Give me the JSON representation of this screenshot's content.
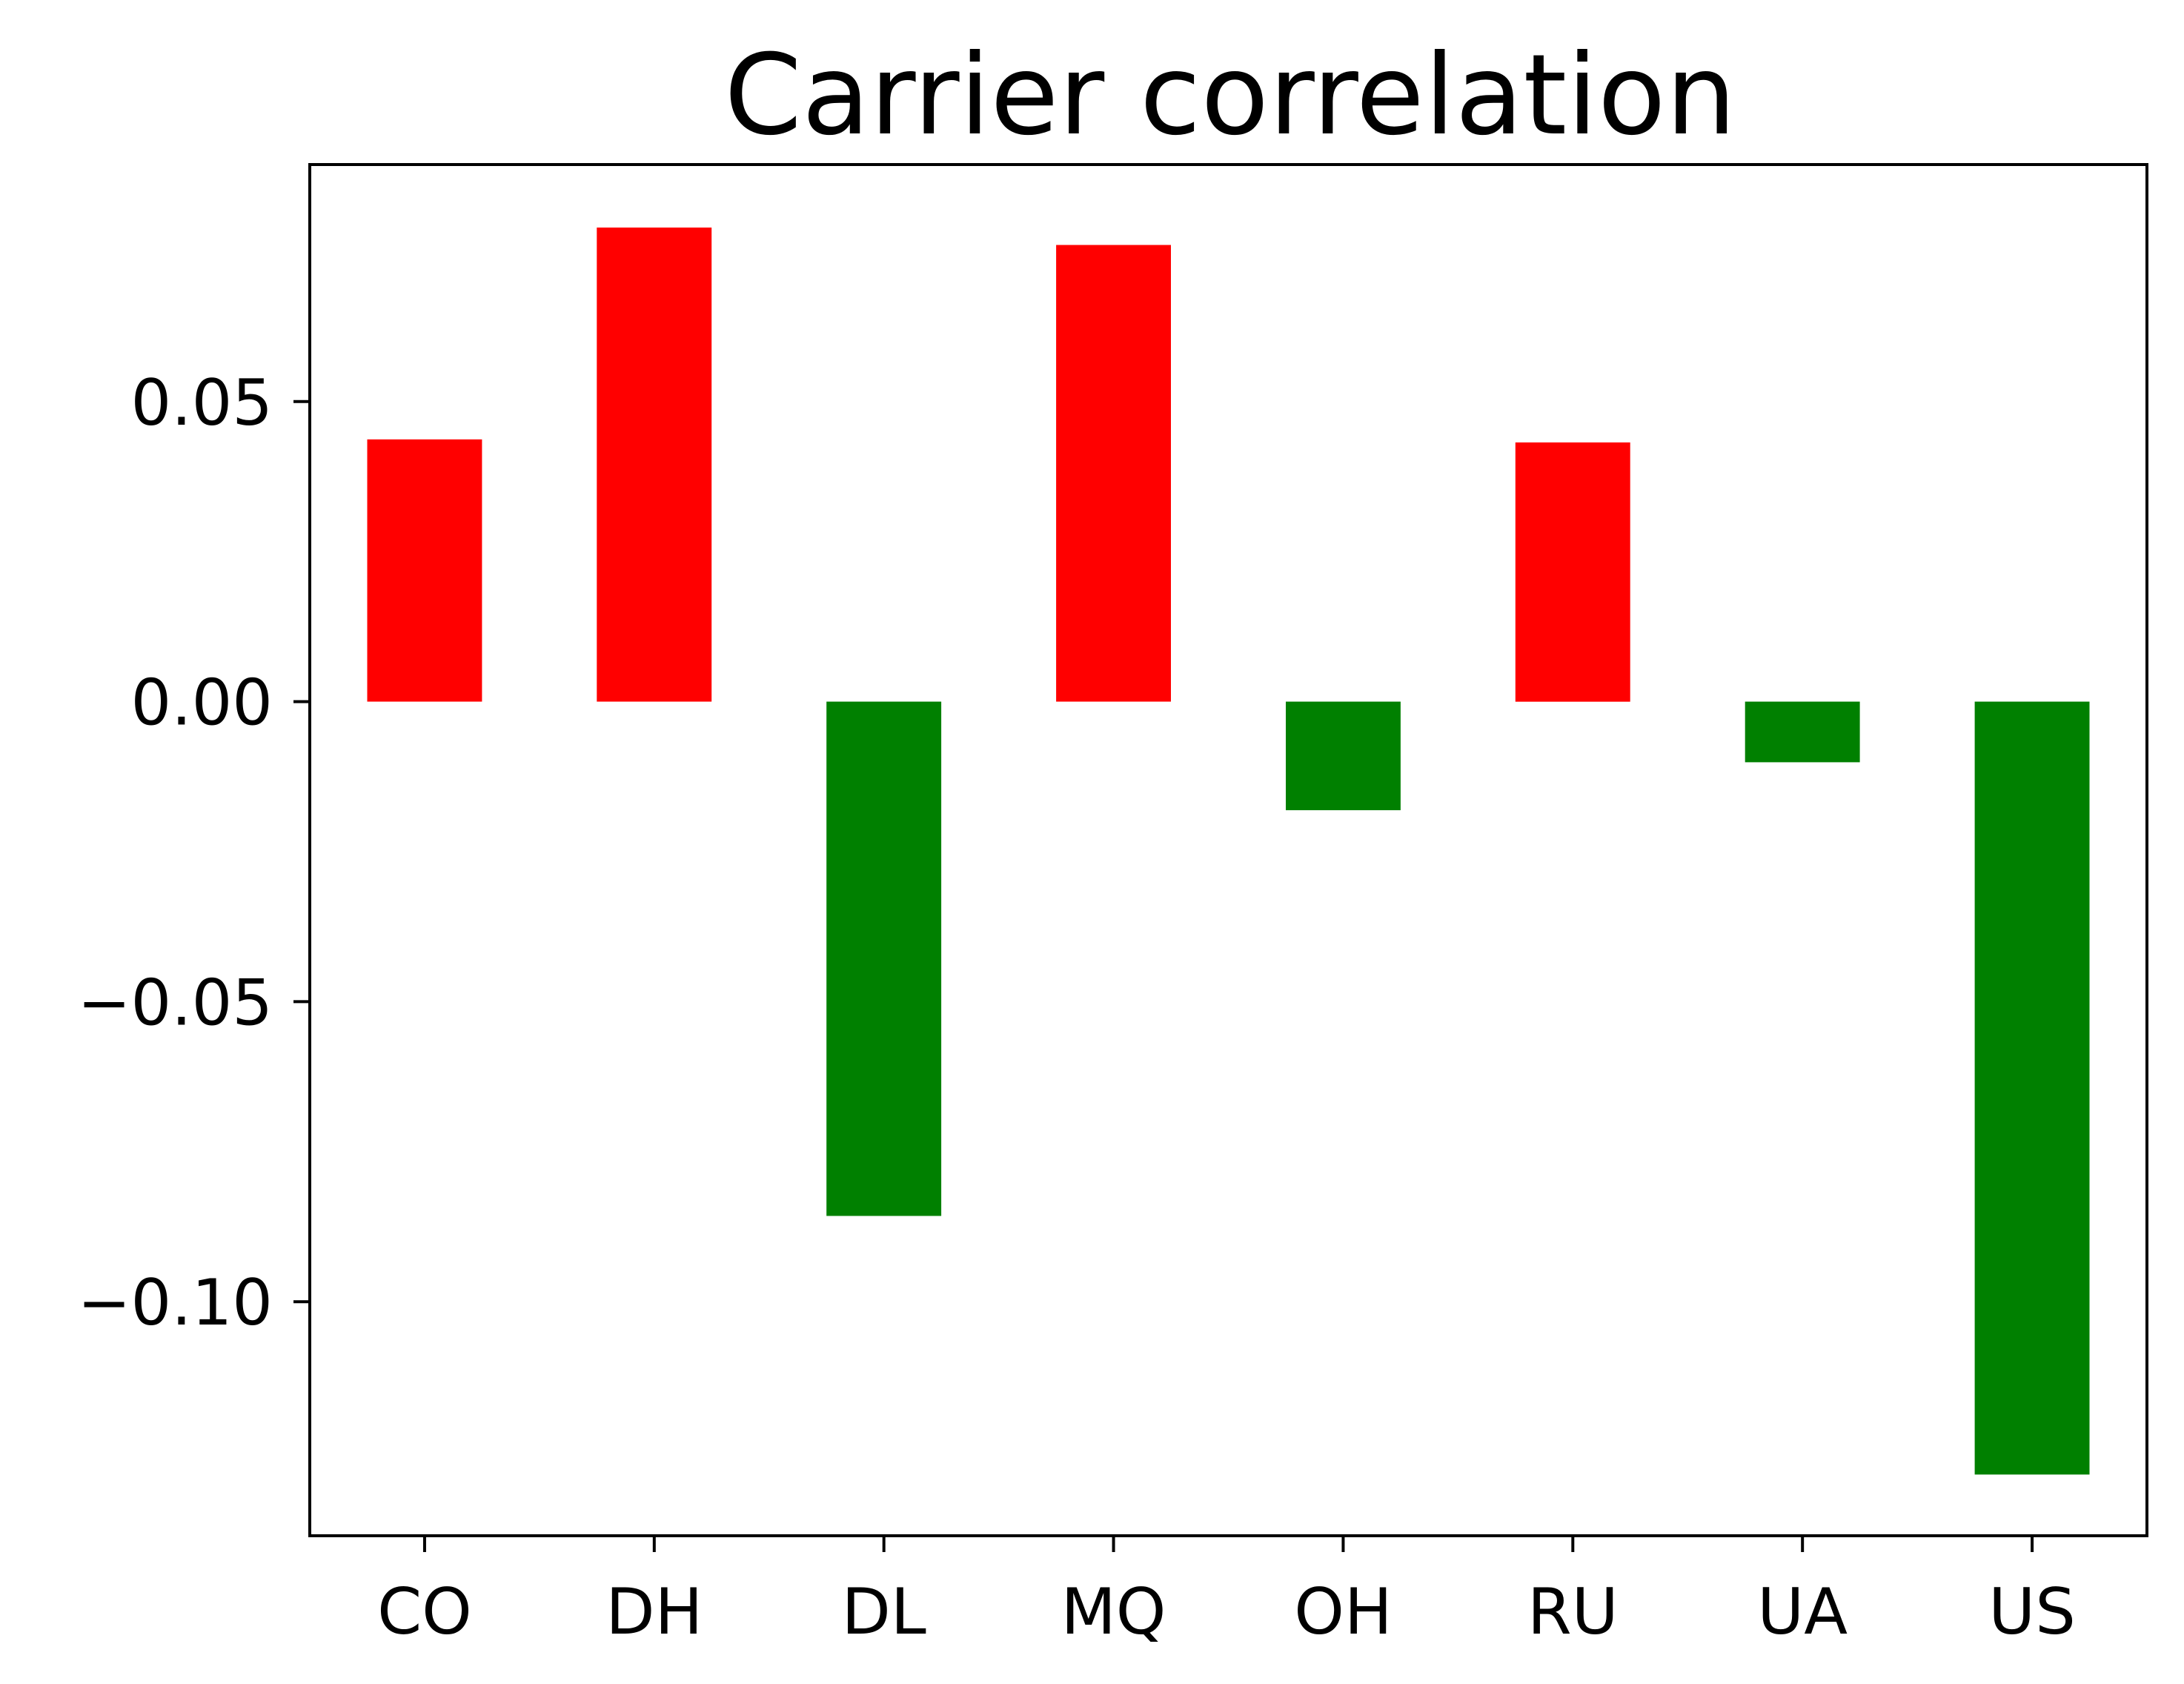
{
  "chart_data": {
    "type": "bar",
    "title": "Carrier correlation",
    "xlabel": "",
    "ylabel": "",
    "categories": [
      "CO",
      "DH",
      "DL",
      "MQ",
      "OH",
      "RU",
      "UA",
      "US"
    ],
    "values": [
      0.0437,
      0.079,
      -0.0857,
      0.0761,
      -0.0181,
      0.0432,
      -0.0101,
      -0.1288
    ],
    "ylim": [
      -0.139,
      0.0895
    ],
    "yticks": [
      0.05,
      0.0,
      -0.05,
      -0.1
    ],
    "ytick_labels": [
      "0.05",
      "0.00",
      "−0.05",
      "−0.10"
    ],
    "grid": false,
    "legend": "none",
    "colors": {
      "positive": "#ff0000",
      "negative": "#008000"
    }
  }
}
